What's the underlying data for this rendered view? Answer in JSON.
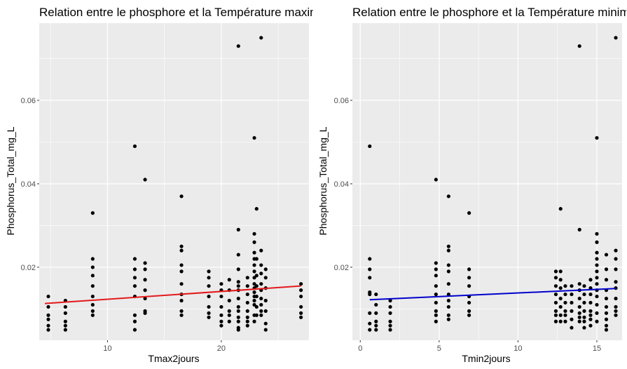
{
  "panel_background": "#ebebeb",
  "chart_data": [
    {
      "type": "scatter",
      "title": "Relation entre le phosphore et la Température maximale",
      "xlabel": "Tmax2jours",
      "ylabel": "Phosphorus_Total_mg_L",
      "xlim": [
        4,
        27.7
      ],
      "ylim": [
        0.0025,
        0.0785
      ],
      "x_ticks": [
        10,
        20
      ],
      "y_ticks": [
        0.02,
        0.04,
        0.06
      ],
      "y_tick_labels": [
        "0.02",
        "0.04",
        "0.06"
      ],
      "grid": true,
      "points": [
        [
          4.8,
          0.013
        ],
        [
          4.8,
          0.0105
        ],
        [
          4.8,
          0.0085
        ],
        [
          4.8,
          0.0075
        ],
        [
          4.8,
          0.006
        ],
        [
          4.8,
          0.005
        ],
        [
          6.3,
          0.012
        ],
        [
          6.3,
          0.0105
        ],
        [
          6.3,
          0.009
        ],
        [
          6.3,
          0.007
        ],
        [
          6.3,
          0.006
        ],
        [
          6.3,
          0.005
        ],
        [
          8.7,
          0.033
        ],
        [
          8.7,
          0.022
        ],
        [
          8.7,
          0.02
        ],
        [
          8.7,
          0.018
        ],
        [
          8.7,
          0.0155
        ],
        [
          8.7,
          0.013
        ],
        [
          8.7,
          0.011
        ],
        [
          8.7,
          0.0095
        ],
        [
          8.7,
          0.0085
        ],
        [
          12.4,
          0.049
        ],
        [
          12.4,
          0.022
        ],
        [
          12.4,
          0.0195
        ],
        [
          12.4,
          0.0175
        ],
        [
          12.4,
          0.0155
        ],
        [
          12.4,
          0.013
        ],
        [
          12.4,
          0.0085
        ],
        [
          12.4,
          0.007
        ],
        [
          12.4,
          0.005
        ],
        [
          13.3,
          0.041
        ],
        [
          13.3,
          0.021
        ],
        [
          13.3,
          0.0195
        ],
        [
          13.3,
          0.017
        ],
        [
          13.3,
          0.0145
        ],
        [
          13.3,
          0.0125
        ],
        [
          13.3,
          0.0095
        ],
        [
          13.3,
          0.009
        ],
        [
          16.5,
          0.037
        ],
        [
          16.5,
          0.025
        ],
        [
          16.5,
          0.024
        ],
        [
          16.5,
          0.0205
        ],
        [
          16.5,
          0.019
        ],
        [
          16.5,
          0.016
        ],
        [
          16.5,
          0.0135
        ],
        [
          16.5,
          0.012
        ],
        [
          16.5,
          0.0095
        ],
        [
          16.5,
          0.0085
        ],
        [
          18.9,
          0.019
        ],
        [
          18.9,
          0.0175
        ],
        [
          18.9,
          0.0155
        ],
        [
          18.9,
          0.013
        ],
        [
          18.9,
          0.0105
        ],
        [
          18.9,
          0.009
        ],
        [
          18.9,
          0.008
        ],
        [
          20.0,
          0.016
        ],
        [
          20.0,
          0.0145
        ],
        [
          20.0,
          0.013
        ],
        [
          20.0,
          0.0105
        ],
        [
          20.0,
          0.0085
        ],
        [
          20.0,
          0.007
        ],
        [
          20.0,
          0.006
        ],
        [
          20.7,
          0.017
        ],
        [
          20.7,
          0.0145
        ],
        [
          20.7,
          0.012
        ],
        [
          20.7,
          0.0095
        ],
        [
          20.7,
          0.0085
        ],
        [
          20.7,
          0.007
        ],
        [
          21.5,
          0.073
        ],
        [
          21.5,
          0.029
        ],
        [
          21.5,
          0.023
        ],
        [
          21.5,
          0.0195
        ],
        [
          21.5,
          0.0165
        ],
        [
          21.5,
          0.0155
        ],
        [
          21.5,
          0.0145
        ],
        [
          21.5,
          0.0125
        ],
        [
          21.5,
          0.0105
        ],
        [
          21.5,
          0.0095
        ],
        [
          21.5,
          0.008
        ],
        [
          21.5,
          0.007
        ],
        [
          21.5,
          0.0055
        ],
        [
          21.5,
          0.005
        ],
        [
          22.3,
          0.0175
        ],
        [
          22.3,
          0.0155
        ],
        [
          22.3,
          0.0135
        ],
        [
          22.3,
          0.0115
        ],
        [
          22.3,
          0.0095
        ],
        [
          22.3,
          0.008
        ],
        [
          22.3,
          0.007
        ],
        [
          22.3,
          0.006
        ],
        [
          22.9,
          0.051
        ],
        [
          22.9,
          0.028
        ],
        [
          22.9,
          0.026
        ],
        [
          22.9,
          0.0235
        ],
        [
          22.9,
          0.022
        ],
        [
          22.9,
          0.0205
        ],
        [
          22.9,
          0.019
        ],
        [
          22.9,
          0.0175
        ],
        [
          22.9,
          0.016
        ],
        [
          22.9,
          0.015
        ],
        [
          22.9,
          0.014
        ],
        [
          22.9,
          0.013
        ],
        [
          22.9,
          0.012
        ],
        [
          22.9,
          0.011
        ],
        [
          22.9,
          0.0085
        ],
        [
          22.9,
          0.007
        ],
        [
          23.1,
          0.034
        ],
        [
          23.1,
          0.022
        ],
        [
          23.1,
          0.018
        ],
        [
          23.1,
          0.0155
        ],
        [
          23.1,
          0.013
        ],
        [
          23.1,
          0.0105
        ],
        [
          23.1,
          0.0085
        ],
        [
          23.5,
          0.075
        ],
        [
          23.5,
          0.024
        ],
        [
          23.5,
          0.0205
        ],
        [
          23.5,
          0.0185
        ],
        [
          23.5,
          0.016
        ],
        [
          23.5,
          0.0145
        ],
        [
          23.5,
          0.0125
        ],
        [
          23.5,
          0.011
        ],
        [
          23.5,
          0.0095
        ],
        [
          23.5,
          0.0085
        ],
        [
          23.9,
          0.0195
        ],
        [
          23.9,
          0.0175
        ],
        [
          23.9,
          0.015
        ],
        [
          23.9,
          0.012
        ],
        [
          23.9,
          0.0095
        ],
        [
          23.9,
          0.0065
        ],
        [
          23.9,
          0.005
        ],
        [
          27.0,
          0.016
        ],
        [
          27.0,
          0.0145
        ],
        [
          27.0,
          0.013
        ],
        [
          27.0,
          0.0105
        ],
        [
          27.0,
          0.009
        ],
        [
          27.0,
          0.008
        ]
      ],
      "trend_line": {
        "color": "#e31a1c",
        "x": [
          4.5,
          27.0
        ],
        "y": [
          0.0113,
          0.0155
        ]
      }
    },
    {
      "type": "scatter",
      "title": "Relation entre le phosphore et la Température minimale",
      "xlabel": "Tmin2jours",
      "ylabel": "Phosphorus_Total_mg_L",
      "xlim": [
        -0.5,
        16.6
      ],
      "ylim": [
        0.0025,
        0.0785
      ],
      "x_ticks": [
        0,
        5,
        10,
        15
      ],
      "y_ticks": [
        0.02,
        0.04,
        0.06
      ],
      "y_tick_labels": [
        "0.02",
        "0.04",
        "0.06"
      ],
      "grid": true,
      "points": [
        [
          0.6,
          0.049
        ],
        [
          0.6,
          0.022
        ],
        [
          0.6,
          0.0195
        ],
        [
          0.6,
          0.0175
        ],
        [
          0.6,
          0.014
        ],
        [
          0.6,
          0.0135
        ],
        [
          0.6,
          0.009
        ],
        [
          0.6,
          0.0065
        ],
        [
          0.6,
          0.005
        ],
        [
          1.0,
          0.0135
        ],
        [
          1.0,
          0.011
        ],
        [
          1.0,
          0.009
        ],
        [
          1.0,
          0.007
        ],
        [
          1.0,
          0.006
        ],
        [
          1.0,
          0.005
        ],
        [
          1.9,
          0.012
        ],
        [
          1.9,
          0.0105
        ],
        [
          1.9,
          0.009
        ],
        [
          1.9,
          0.007
        ],
        [
          1.9,
          0.006
        ],
        [
          1.9,
          0.005
        ],
        [
          4.8,
          0.041
        ],
        [
          4.8,
          0.021
        ],
        [
          4.8,
          0.0195
        ],
        [
          4.8,
          0.018
        ],
        [
          4.8,
          0.0155
        ],
        [
          4.8,
          0.0135
        ],
        [
          4.8,
          0.0115
        ],
        [
          4.8,
          0.0095
        ],
        [
          4.8,
          0.0085
        ],
        [
          4.8,
          0.007
        ],
        [
          5.6,
          0.037
        ],
        [
          5.6,
          0.025
        ],
        [
          5.6,
          0.024
        ],
        [
          5.6,
          0.0205
        ],
        [
          5.6,
          0.019
        ],
        [
          5.6,
          0.016
        ],
        [
          5.6,
          0.0135
        ],
        [
          5.6,
          0.012
        ],
        [
          5.6,
          0.0105
        ],
        [
          5.6,
          0.0085
        ],
        [
          5.6,
          0.0075
        ],
        [
          6.9,
          0.033
        ],
        [
          6.9,
          0.0195
        ],
        [
          6.9,
          0.0175
        ],
        [
          6.9,
          0.0155
        ],
        [
          6.9,
          0.013
        ],
        [
          6.9,
          0.0115
        ],
        [
          6.9,
          0.0095
        ],
        [
          6.9,
          0.0085
        ],
        [
          12.4,
          0.019
        ],
        [
          12.4,
          0.0175
        ],
        [
          12.4,
          0.0155
        ],
        [
          12.4,
          0.0135
        ],
        [
          12.4,
          0.0115
        ],
        [
          12.4,
          0.0095
        ],
        [
          12.4,
          0.0085
        ],
        [
          12.4,
          0.007
        ],
        [
          12.7,
          0.034
        ],
        [
          12.7,
          0.019
        ],
        [
          12.7,
          0.017
        ],
        [
          12.7,
          0.015
        ],
        [
          12.7,
          0.0125
        ],
        [
          12.7,
          0.0105
        ],
        [
          12.7,
          0.0085
        ],
        [
          12.7,
          0.007
        ],
        [
          13.0,
          0.0155
        ],
        [
          13.0,
          0.0135
        ],
        [
          13.0,
          0.0115
        ],
        [
          13.0,
          0.0095
        ],
        [
          13.0,
          0.0085
        ],
        [
          13.0,
          0.007
        ],
        [
          13.4,
          0.0155
        ],
        [
          13.4,
          0.0135
        ],
        [
          13.4,
          0.0115
        ],
        [
          13.4,
          0.0095
        ],
        [
          13.4,
          0.0075
        ],
        [
          13.4,
          0.0055
        ],
        [
          13.9,
          0.073
        ],
        [
          13.9,
          0.029
        ],
        [
          13.9,
          0.016
        ],
        [
          13.9,
          0.0145
        ],
        [
          13.9,
          0.0125
        ],
        [
          13.9,
          0.0105
        ],
        [
          13.9,
          0.009
        ],
        [
          13.9,
          0.008
        ],
        [
          13.9,
          0.007
        ],
        [
          14.2,
          0.0155
        ],
        [
          14.2,
          0.0135
        ],
        [
          14.2,
          0.0115
        ],
        [
          14.2,
          0.0095
        ],
        [
          14.2,
          0.008
        ],
        [
          14.2,
          0.007
        ],
        [
          14.2,
          0.0055
        ],
        [
          14.6,
          0.017
        ],
        [
          14.6,
          0.015
        ],
        [
          14.6,
          0.0135
        ],
        [
          14.6,
          0.0115
        ],
        [
          14.6,
          0.0095
        ],
        [
          14.6,
          0.0085
        ],
        [
          14.6,
          0.0075
        ],
        [
          14.6,
          0.006
        ],
        [
          15.0,
          0.051
        ],
        [
          15.0,
          0.028
        ],
        [
          15.0,
          0.026
        ],
        [
          15.0,
          0.0235
        ],
        [
          15.0,
          0.022
        ],
        [
          15.0,
          0.0205
        ],
        [
          15.0,
          0.019
        ],
        [
          15.0,
          0.0175
        ],
        [
          15.0,
          0.016
        ],
        [
          15.0,
          0.0145
        ],
        [
          15.0,
          0.013
        ],
        [
          15.0,
          0.011
        ],
        [
          15.0,
          0.009
        ],
        [
          15.0,
          0.007
        ],
        [
          15.6,
          0.023
        ],
        [
          15.6,
          0.0195
        ],
        [
          15.6,
          0.017
        ],
        [
          15.6,
          0.0145
        ],
        [
          15.6,
          0.0125
        ],
        [
          15.6,
          0.0105
        ],
        [
          15.6,
          0.009
        ],
        [
          15.6,
          0.0075
        ],
        [
          15.6,
          0.006
        ],
        [
          15.6,
          0.005
        ],
        [
          16.2,
          0.075
        ],
        [
          16.2,
          0.024
        ],
        [
          16.2,
          0.022
        ],
        [
          16.2,
          0.0195
        ],
        [
          16.2,
          0.0165
        ],
        [
          16.2,
          0.015
        ],
        [
          16.2,
          0.0125
        ],
        [
          16.2,
          0.0105
        ],
        [
          16.2,
          0.0095
        ],
        [
          16.2,
          0.0085
        ]
      ],
      "trend_line": {
        "color": "#0000cc",
        "x": [
          0.6,
          16.2
        ],
        "y": [
          0.0122,
          0.0149
        ]
      }
    }
  ]
}
